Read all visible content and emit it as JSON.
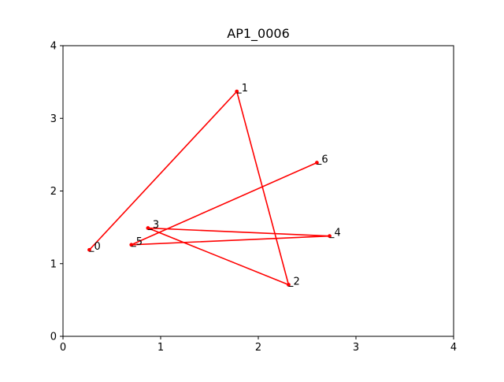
{
  "chart_data": {
    "type": "line",
    "title": "AP1_0006",
    "xlabel": "",
    "ylabel": "",
    "xlim": [
      0,
      4
    ],
    "ylim": [
      0,
      4
    ],
    "xticks": [
      "0",
      "1",
      "2",
      "3",
      "4"
    ],
    "yticks": [
      "0",
      "1",
      "2",
      "3",
      "4"
    ],
    "grid": false,
    "series": [
      {
        "color": "#ff0000",
        "points": [
          {
            "label": "0",
            "x": 0.27,
            "y": 1.19
          },
          {
            "label": "1",
            "x": 1.78,
            "y": 3.37
          },
          {
            "label": "2",
            "x": 2.31,
            "y": 0.71
          },
          {
            "label": "3",
            "x": 0.87,
            "y": 1.49
          },
          {
            "label": "4",
            "x": 2.73,
            "y": 1.38
          },
          {
            "label": "5",
            "x": 0.7,
            "y": 1.26
          },
          {
            "label": "6",
            "x": 2.6,
            "y": 2.39
          }
        ]
      }
    ]
  }
}
